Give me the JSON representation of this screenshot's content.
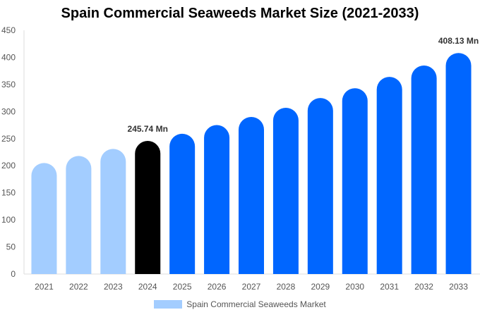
{
  "chart_data": {
    "type": "bar",
    "title": "Spain Commercial Seaweeds Market Size (2021-2033)",
    "categories": [
      "2021",
      "2022",
      "2023",
      "2024",
      "2025",
      "2026",
      "2027",
      "2028",
      "2029",
      "2030",
      "2031",
      "2032",
      "2033"
    ],
    "series": [
      {
        "name": "Spain Commercial Seaweeds Market",
        "values": [
          205,
          218,
          231,
          245.74,
          259,
          275,
          290,
          307,
          325,
          343,
          364,
          385,
          408.13
        ]
      }
    ],
    "bar_colors": [
      "#a3cdff",
      "#a3cdff",
      "#a3cdff",
      "#000000",
      "#0066ff",
      "#0066ff",
      "#0066ff",
      "#0066ff",
      "#0066ff",
      "#0066ff",
      "#0066ff",
      "#0066ff",
      "#0066ff"
    ],
    "legend_color": "#a3cdff",
    "data_labels": [
      {
        "index": 3,
        "text": "245.74 Mn"
      },
      {
        "index": 12,
        "text": "408.13 Mn"
      }
    ],
    "ylim": [
      0,
      450
    ],
    "yticks": [
      0,
      50,
      100,
      150,
      200,
      250,
      300,
      350,
      400,
      450
    ],
    "grid": false,
    "legend_position": "bottom",
    "xlabel": "",
    "ylabel": ""
  }
}
